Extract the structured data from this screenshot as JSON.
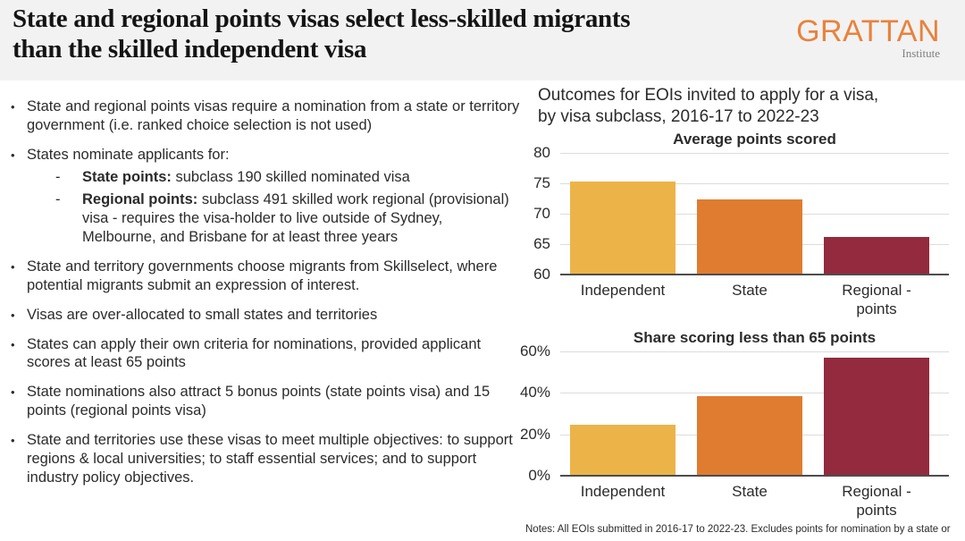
{
  "slide": {
    "title": "State and regional points visas select less-skilled migrants\nthan the skilled independent visa",
    "logo": {
      "wordmark": "GRATTAN",
      "subtitle": "Institute",
      "color": "#e8823c"
    }
  },
  "ui": {
    "bullet_marker": "•",
    "sub_marker": "-"
  },
  "bullets": [
    {
      "text": "State and regional points visas require a nomination from a state or territory government (i.e. ranked choice selection is not used)"
    },
    {
      "text": "States nominate applicants for:",
      "subs": [
        {
          "bold": "State points:",
          "text": " subclass 190 skilled nominated visa"
        },
        {
          "bold": "Regional points:",
          "text": " subclass 491 skilled work regional (provisional) visa - requires the visa-holder to live outside of Sydney, Melbourne, and Brisbane for at least three years"
        }
      ]
    },
    {
      "text": "State and territory governments choose migrants from Skillselect, where potential migrants submit an expression of interest."
    },
    {
      "text": "Visas are over-allocated to small states and territories"
    },
    {
      "text": "States can apply their own criteria for nominations, provided applicant scores at least 65 points"
    },
    {
      "text": "State nominations also attract 5 bonus points (state points visa) and 15 points (regional points visa)"
    },
    {
      "text": "State and territories use these visas to meet multiple objectives: to support regions & local universities; to staff essential services; and to support industry policy objectives."
    }
  ],
  "chart_header": "Outcomes for EOIs invited to apply for a visa,\nby visa subclass, 2016-17 to 2022-23",
  "notes": "Notes: All EOIs submitted in 2016-17 to 2022-23. Excludes points for nomination by a state or",
  "chart_data": [
    {
      "type": "bar",
      "title": "Average points scored",
      "categories": [
        "Independent",
        "State",
        "Regional -\npoints"
      ],
      "values": [
        75.3,
        72.3,
        66.2
      ],
      "ymin": 60,
      "ymax": 80,
      "yticks": [
        60,
        65,
        70,
        75,
        80
      ],
      "ytick_labels": [
        "60",
        "65",
        "70",
        "75",
        "80"
      ],
      "colors": [
        "#ecb448",
        "#e07c30",
        "#932a3d"
      ],
      "grid": true,
      "legend": false,
      "ylabel": "",
      "xlabel": ""
    },
    {
      "type": "bar",
      "title": "Share scoring less than 65 points",
      "categories": [
        "Independent",
        "State",
        "Regional -\npoints"
      ],
      "values": [
        24.5,
        38.5,
        57
      ],
      "ymin": 0,
      "ymax": 60,
      "yticks": [
        0,
        20,
        40,
        60
      ],
      "ytick_labels": [
        "0%",
        "20%",
        "40%",
        "60%"
      ],
      "colors": [
        "#ecb448",
        "#e07c30",
        "#932a3d"
      ],
      "grid": true,
      "legend": false,
      "ylabel": "",
      "xlabel": ""
    }
  ]
}
